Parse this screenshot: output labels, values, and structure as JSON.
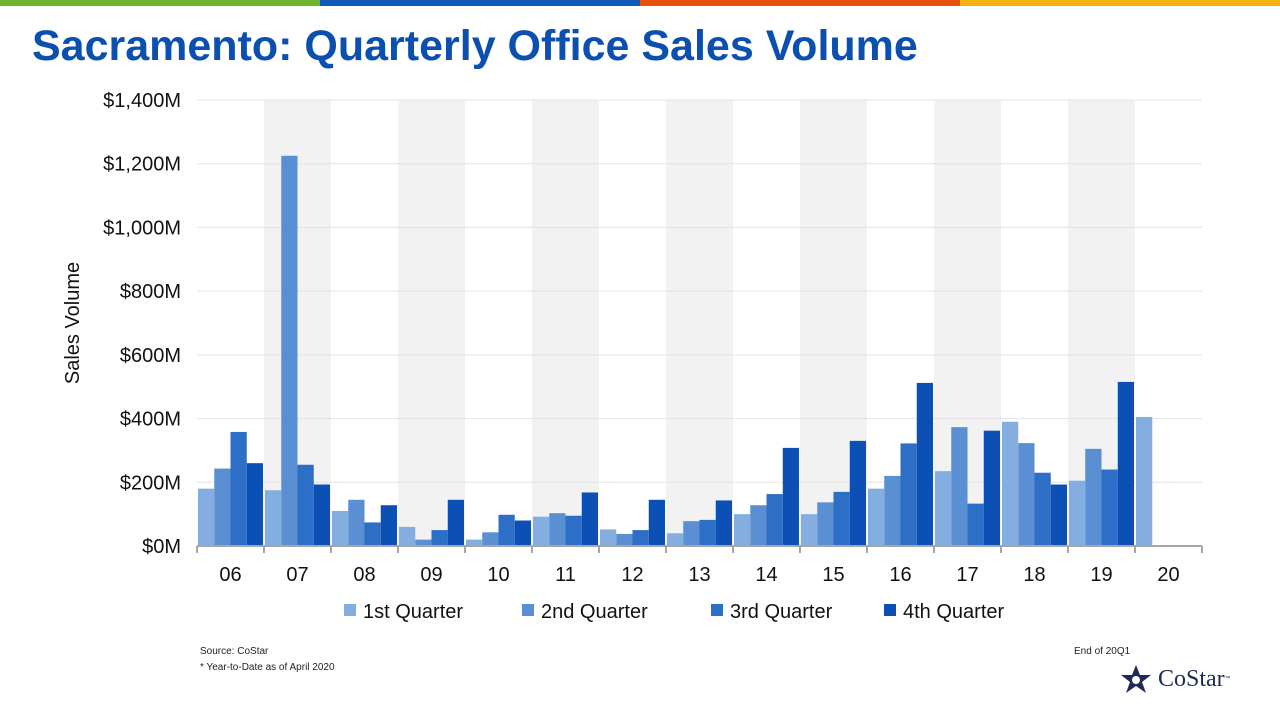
{
  "title": "Sacramento: Quarterly Office Sales Volume",
  "brand_colors": [
    "#70b32c",
    "#0f5bb5",
    "#e8500f",
    "#f5b116"
  ],
  "footer": {
    "source": "Source: CoStar",
    "note": "* Year-to-Date as of April 2020",
    "period": "End of 20Q1",
    "logo_text": "CoStar",
    "logo_tm": "™",
    "logo_icon": "costar-star-icon"
  },
  "chart_data": {
    "type": "bar",
    "title": "",
    "xlabel": "",
    "ylabel": "Sales Volume",
    "ylim": [
      0,
      1400
    ],
    "yunit": "$M",
    "yticks": [
      "$0M",
      "$200M",
      "$400M",
      "$600M",
      "$800M",
      "$1,000M",
      "$1,200M",
      "$1,400M"
    ],
    "grid": true,
    "alternating_band_color": "#f2f2f2",
    "legend_position": "bottom",
    "categories": [
      "06",
      "07",
      "08",
      "09",
      "10",
      "11",
      "12",
      "13",
      "14",
      "15",
      "16",
      "17",
      "18",
      "19",
      "20"
    ],
    "series": [
      {
        "name": "1st Quarter",
        "color": "#85aee0",
        "values": [
          180,
          175,
          110,
          60,
          20,
          92,
          52,
          40,
          100,
          100,
          180,
          235,
          390,
          205,
          405
        ]
      },
      {
        "name": "2nd Quarter",
        "color": "#5a8fd3",
        "values": [
          243,
          1225,
          145,
          20,
          43,
          103,
          38,
          78,
          128,
          137,
          220,
          373,
          323,
          305,
          null
        ]
      },
      {
        "name": "3rd Quarter",
        "color": "#2d6fc7",
        "values": [
          358,
          255,
          74,
          50,
          98,
          95,
          50,
          82,
          163,
          170,
          322,
          133,
          230,
          240,
          null
        ]
      },
      {
        "name": "4th Quarter",
        "color": "#0d50b5",
        "values": [
          260,
          193,
          128,
          145,
          80,
          168,
          145,
          143,
          308,
          330,
          512,
          362,
          193,
          515,
          null
        ]
      }
    ]
  }
}
